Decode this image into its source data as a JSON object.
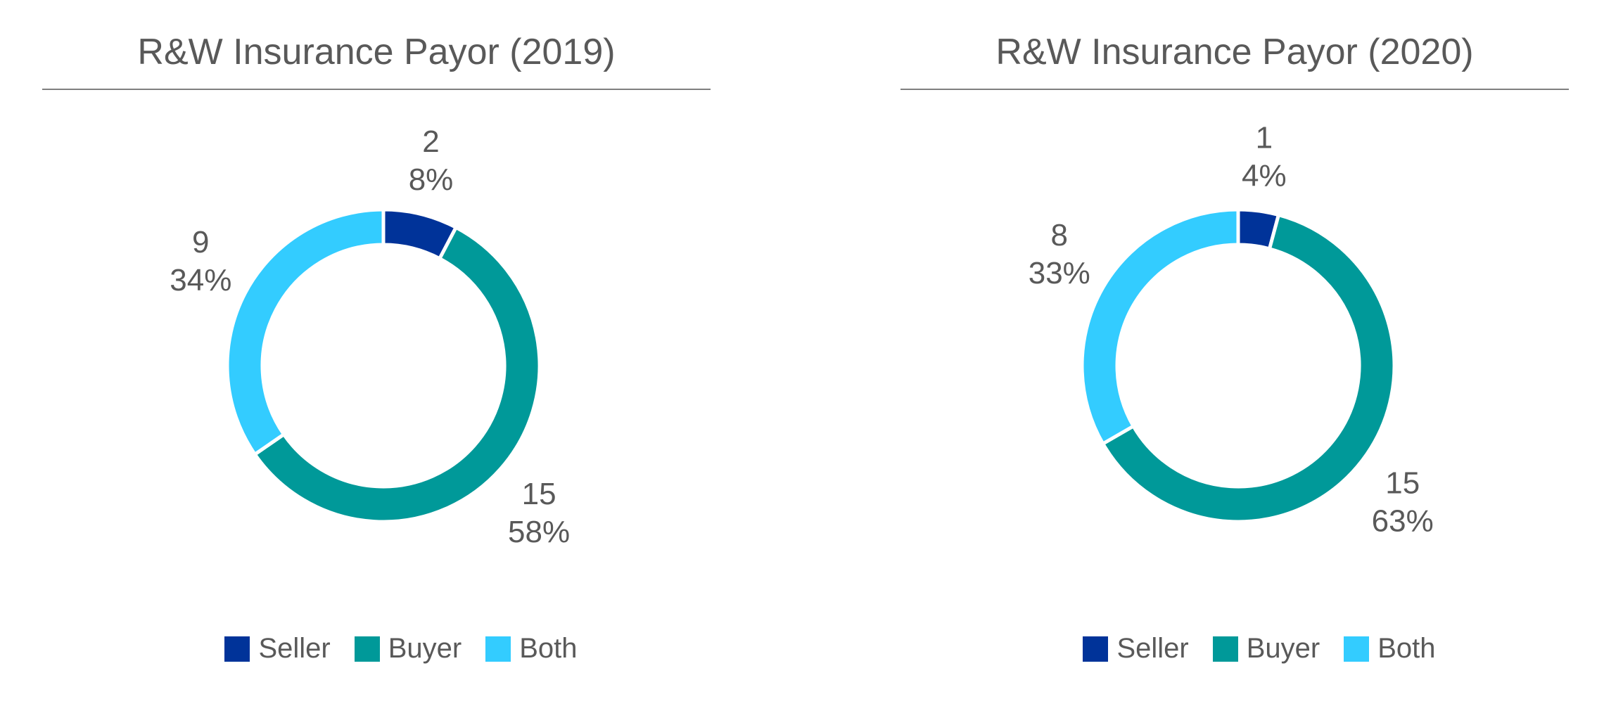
{
  "chart_data": [
    {
      "type": "pie",
      "title": "R&W Insurance Payor (2019)",
      "categories": [
        "Seller",
        "Buyer",
        "Both"
      ],
      "values": [
        2,
        15,
        9
      ],
      "percent_labels": [
        "8%",
        "58%",
        "34%"
      ],
      "colors": [
        "#003399",
        "#009999",
        "#33CCFF"
      ],
      "legend": "bottom"
    },
    {
      "type": "pie",
      "title": "R&W Insurance Payor (2020)",
      "categories": [
        "Seller",
        "Buyer",
        "Both"
      ],
      "values": [
        1,
        15,
        8
      ],
      "percent_labels": [
        "4%",
        "63%",
        "33%"
      ],
      "colors": [
        "#003399",
        "#009999",
        "#33CCFF"
      ],
      "legend": "bottom"
    }
  ]
}
